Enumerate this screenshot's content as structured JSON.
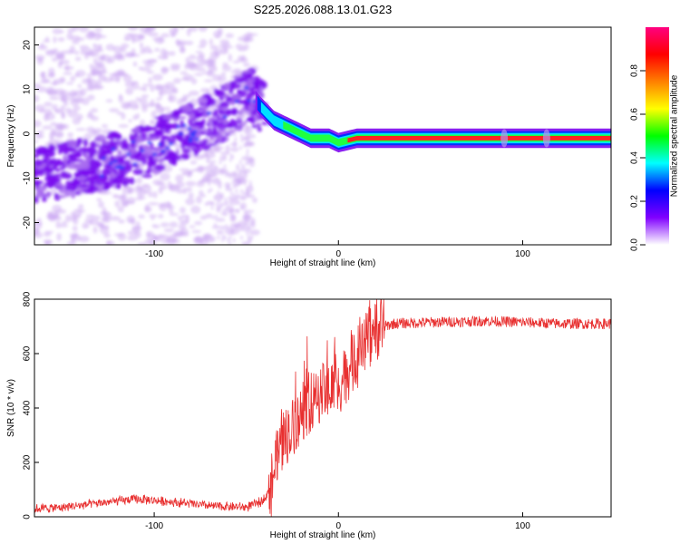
{
  "title": "S225.2026.088.13.01.G23",
  "chart_data": [
    {
      "type": "heatmap",
      "xlabel": "Height of straight line (km)",
      "ylabel": "Frequency (Hz)",
      "xlim": [
        -165,
        148
      ],
      "ylim": [
        -25,
        24
      ],
      "xticks": [
        -100,
        0,
        100
      ],
      "yticks": [
        -20,
        -10,
        0,
        10,
        20
      ],
      "colorbar": {
        "label": "Normalized spectral amplitude",
        "range": [
          0,
          1
        ],
        "ticks": [
          "0.0",
          "0.2",
          "0.4",
          "0.6",
          "0.8"
        ],
        "colors": [
          "#ffffff",
          "#8000ff",
          "#0000ff",
          "#00ffff",
          "#00ff00",
          "#ffff00",
          "#ff8000",
          "#ff0000",
          "#ff0080"
        ]
      },
      "ridge": {
        "description_points_x": [
          -160,
          -120,
          -100,
          -80,
          -60,
          -48,
          -42,
          -35,
          -25,
          -15,
          -5,
          0,
          10,
          30,
          60,
          90,
          120,
          148
        ],
        "description_points_y": [
          -9,
          -6,
          -3,
          1,
          5,
          9,
          6,
          3,
          1,
          -1,
          -1,
          -2,
          -1,
          -1,
          -1,
          -1,
          -1,
          -1
        ]
      }
    },
    {
      "type": "line",
      "xlabel": "Height of straight line (km)",
      "ylabel": "SNR (10 * v/v)",
      "xlim": [
        -165,
        148
      ],
      "ylim": [
        0,
        800
      ],
      "xticks": [
        -100,
        0,
        100
      ],
      "yticks": [
        0,
        200,
        400,
        600,
        800
      ],
      "color": "#e83030",
      "profile": {
        "x": [
          -165,
          -150,
          -130,
          -110,
          -90,
          -70,
          -50,
          -42,
          -38,
          -34,
          -30,
          -25,
          -20,
          -15,
          -10,
          -5,
          0,
          5,
          10,
          15,
          20,
          25,
          30,
          50,
          80,
          100,
          120,
          148
        ],
        "y": [
          30,
          35,
          50,
          65,
          55,
          40,
          35,
          55,
          90,
          200,
          280,
          330,
          380,
          420,
          450,
          470,
          480,
          530,
          590,
          640,
          680,
          700,
          710,
          715,
          720,
          715,
          710,
          710
        ]
      }
    }
  ]
}
